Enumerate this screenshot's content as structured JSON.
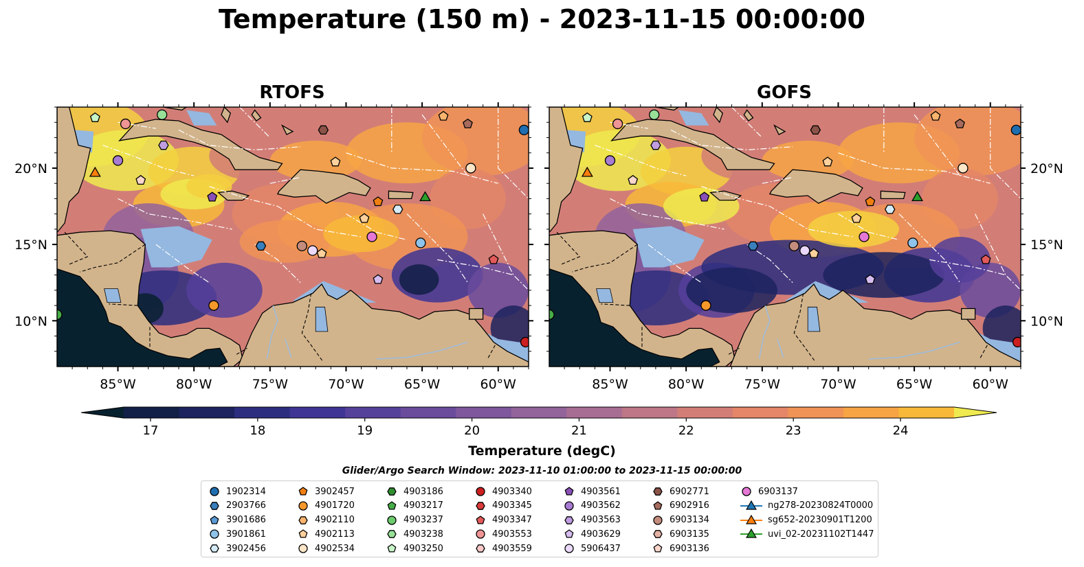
{
  "title": "Temperature (150 m) - 2023-11-15 00:00:00",
  "panels": [
    {
      "title": "RTOFS",
      "id": "rtofs"
    },
    {
      "title": "GOFS",
      "id": "gofs"
    }
  ],
  "lat_ticks": [
    "10°N",
    "15°N",
    "20°N"
  ],
  "lon_ticks": [
    "85°W",
    "80°W",
    "75°W",
    "70°W",
    "65°W",
    "60°W"
  ],
  "colorbar": {
    "label": "Temperature (degC)",
    "ticks": [
      "17",
      "18",
      "19",
      "20",
      "21",
      "22",
      "23",
      "24"
    ],
    "colors": [
      "#08212f",
      "#121f47",
      "#1c235e",
      "#2c2d7e",
      "#3e3594",
      "#55409a",
      "#6a4b9c",
      "#7e579c",
      "#93639b",
      "#a86d93",
      "#bd7787",
      "#d27e77",
      "#e48667",
      "#f09356",
      "#f7a445",
      "#f8b93a",
      "#f5d040",
      "#efea4f"
    ]
  },
  "search_window": "Glider/Argo Search Window: 2023-11-10 01:00:00 to 2023-11-15 00:00:00",
  "legend": [
    {
      "label": "1902314",
      "marker": "circle",
      "color": "#1f6eb0"
    },
    {
      "label": "2903766",
      "marker": "hexagon",
      "color": "#3a7fbd"
    },
    {
      "label": "3901686",
      "marker": "pentagon",
      "color": "#5a9bd5"
    },
    {
      "label": "3901861",
      "marker": "circle",
      "color": "#8ec3ea"
    },
    {
      "label": "3902456",
      "marker": "hexagon",
      "color": "#d5ecf8"
    },
    {
      "label": "3902457",
      "marker": "pentagon",
      "color": "#f07f12"
    },
    {
      "label": "4901720",
      "marker": "circle",
      "color": "#f7982a"
    },
    {
      "label": "4902110",
      "marker": "hexagon",
      "color": "#fbb46e"
    },
    {
      "label": "4902113",
      "marker": "pentagon",
      "color": "#fdd09c"
    },
    {
      "label": "4902534",
      "marker": "circle",
      "color": "#fde6c8"
    },
    {
      "label": "4903186",
      "marker": "hexagon",
      "color": "#2f8f2f"
    },
    {
      "label": "4903217",
      "marker": "pentagon",
      "color": "#47ad47"
    },
    {
      "label": "4903237",
      "marker": "circle",
      "color": "#6ccb6c"
    },
    {
      "label": "4903238",
      "marker": "hexagon",
      "color": "#98e098"
    },
    {
      "label": "4903250",
      "marker": "pentagon",
      "color": "#c8f5c8"
    },
    {
      "label": "4903340",
      "marker": "circle",
      "color": "#cc1f1f"
    },
    {
      "label": "4903345",
      "marker": "hexagon",
      "color": "#dc3b3b"
    },
    {
      "label": "4903347",
      "marker": "pentagon",
      "color": "#e35a5a"
    },
    {
      "label": "4903553",
      "marker": "circle",
      "color": "#f09595"
    },
    {
      "label": "4903559",
      "marker": "hexagon",
      "color": "#f8c8c8"
    },
    {
      "label": "4903561",
      "marker": "pentagon",
      "color": "#8a50b8"
    },
    {
      "label": "4903562",
      "marker": "circle",
      "color": "#a87cd1"
    },
    {
      "label": "4903563",
      "marker": "hexagon",
      "color": "#bf9de0"
    },
    {
      "label": "4903629",
      "marker": "pentagon",
      "color": "#d6bdf0"
    },
    {
      "label": "5906437",
      "marker": "circle",
      "color": "#ead9fb"
    },
    {
      "label": "6902771",
      "marker": "hexagon",
      "color": "#8b5347"
    },
    {
      "label": "6902916",
      "marker": "pentagon",
      "color": "#a66b5d"
    },
    {
      "label": "6903134",
      "marker": "circle",
      "color": "#c48c7d"
    },
    {
      "label": "6903135",
      "marker": "hexagon",
      "color": "#e4b2a4"
    },
    {
      "label": "6903136",
      "marker": "pentagon",
      "color": "#fad6cb"
    },
    {
      "label": "6903137",
      "marker": "circle",
      "color": "#e577d5"
    },
    {
      "label": "ng278-20230824T0000",
      "marker": "triangle-line",
      "color": "#1f77b4"
    },
    {
      "label": "sg652-20230901T1200",
      "marker": "triangle-line",
      "color": "#ff7f0e"
    },
    {
      "label": "uvi_02-20231102T1447",
      "marker": "triangle-line",
      "color": "#2ca02c"
    }
  ],
  "observations": [
    {
      "lon": -86.5,
      "lat": 23.3,
      "marker": "pentagon",
      "color": "#c8f5c8"
    },
    {
      "lon": -84.5,
      "lat": 22.9,
      "marker": "circle",
      "color": "#f09595"
    },
    {
      "lon": -82.1,
      "lat": 23.5,
      "marker": "circle",
      "color": "#98e098"
    },
    {
      "lon": -82.0,
      "lat": 21.5,
      "marker": "hexagon",
      "color": "#bf9de0"
    },
    {
      "lon": -85.0,
      "lat": 20.5,
      "marker": "circle",
      "color": "#a87cd1"
    },
    {
      "lon": -86.5,
      "lat": 19.7,
      "marker": "triangle",
      "color": "#ff7f0e"
    },
    {
      "lon": -83.5,
      "lat": 19.2,
      "marker": "pentagon",
      "color": "#fad6cb"
    },
    {
      "lon": -78.8,
      "lat": 18.1,
      "marker": "pentagon",
      "color": "#8a50b8"
    },
    {
      "lon": -75.6,
      "lat": 14.9,
      "marker": "hexagon",
      "color": "#3a7fbd"
    },
    {
      "lon": -78.7,
      "lat": 11.0,
      "marker": "circle",
      "color": "#f7982a"
    },
    {
      "lon": -72.9,
      "lat": 14.9,
      "marker": "circle",
      "color": "#c48c7d"
    },
    {
      "lon": -72.2,
      "lat": 14.6,
      "marker": "circle",
      "color": "#ead9fb"
    },
    {
      "lon": -71.6,
      "lat": 14.4,
      "marker": "pentagon",
      "color": "#fdd09c"
    },
    {
      "lon": -71.5,
      "lat": 22.5,
      "marker": "hexagon",
      "color": "#8b5347"
    },
    {
      "lon": -70.7,
      "lat": 20.4,
      "marker": "pentagon",
      "color": "#fdd09c"
    },
    {
      "lon": -63.6,
      "lat": 23.4,
      "marker": "pentagon",
      "color": "#fbb46e"
    },
    {
      "lon": -62.0,
      "lat": 22.9,
      "marker": "pentagon",
      "color": "#a66b5d"
    },
    {
      "lon": -58.3,
      "lat": 22.5,
      "marker": "circle",
      "color": "#1f6eb0"
    },
    {
      "lon": -61.8,
      "lat": 20.0,
      "marker": "circle",
      "color": "#fde6c8"
    },
    {
      "lon": -67.9,
      "lat": 17.8,
      "marker": "pentagon",
      "color": "#f07f12"
    },
    {
      "lon": -66.6,
      "lat": 17.3,
      "marker": "hexagon",
      "color": "#d5ecf8"
    },
    {
      "lon": -64.8,
      "lat": 18.1,
      "marker": "triangle",
      "color": "#2ca02c"
    },
    {
      "lon": -68.8,
      "lat": 16.7,
      "marker": "pentagon",
      "color": "#fdd09c"
    },
    {
      "lon": -68.3,
      "lat": 15.5,
      "marker": "circle",
      "color": "#e577d5"
    },
    {
      "lon": -65.1,
      "lat": 15.1,
      "marker": "circle",
      "color": "#8ec3ea"
    },
    {
      "lon": -60.3,
      "lat": 14.0,
      "marker": "pentagon",
      "color": "#e35a5a"
    },
    {
      "lon": -67.9,
      "lat": 12.7,
      "marker": "pentagon",
      "color": "#d6bdf0"
    },
    {
      "lon": -58.2,
      "lat": 8.6,
      "marker": "circle",
      "color": "#cc1f1f"
    },
    {
      "lon": -89.0,
      "lat": 10.4,
      "marker": "circle",
      "color": "#47ad47"
    }
  ]
}
